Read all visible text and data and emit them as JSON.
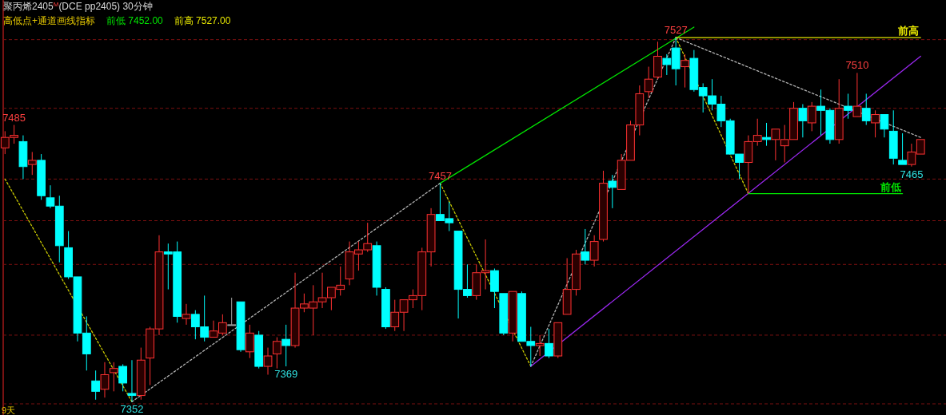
{
  "chart_data": {
    "type": "candlestick",
    "title": "聚丙烯2405$^{M}$(DCE pp2405)  30分钟",
    "tick_labels": false,
    "categories": [
      null,
      null,
      null,
      null,
      null,
      null,
      null,
      null,
      null,
      null,
      null,
      null,
      null,
      null,
      null,
      null,
      null,
      null,
      null,
      null,
      null,
      null,
      null,
      null,
      null,
      null,
      null,
      null,
      null,
      null,
      null,
      null,
      null,
      null,
      null,
      null,
      null,
      null,
      null,
      null,
      null,
      null,
      null,
      null,
      null,
      null,
      null,
      null,
      null,
      null,
      null,
      null,
      null,
      null,
      null,
      null,
      null,
      null,
      null,
      null,
      null,
      null,
      null,
      null,
      null,
      null,
      null,
      null,
      null,
      null,
      null,
      null,
      null,
      null,
      null,
      null,
      null,
      null,
      null,
      null,
      null,
      null,
      null,
      null,
      null,
      null,
      null,
      null,
      null,
      null,
      null,
      null,
      null,
      null,
      null,
      null,
      null,
      null,
      null,
      null,
      null,
      null
    ],
    "ohlc": [
      [
        7474,
        7482,
        7471,
        7479
      ],
      [
        7479,
        7485,
        7476,
        7480
      ],
      [
        7477,
        7480,
        7459,
        7465
      ],
      [
        7466,
        7472,
        7461,
        7468
      ],
      [
        7468,
        7471,
        7449,
        7451
      ],
      [
        7450,
        7456,
        7445,
        7446
      ],
      [
        7446,
        7451,
        7419,
        7427
      ],
      [
        7426,
        7434,
        7411,
        7412
      ],
      [
        7412,
        7412,
        7381,
        7385
      ],
      [
        7385,
        7393,
        7367,
        7375
      ],
      [
        7362,
        7367,
        7353,
        7357
      ],
      [
        7358,
        7371,
        7354,
        7365
      ],
      [
        7366,
        7371,
        7357,
        7368
      ],
      [
        7369,
        7370,
        7357,
        7361
      ],
      [
        7356,
        7372,
        7352,
        7355
      ],
      [
        7355,
        7378,
        7353,
        7372
      ],
      [
        7373,
        7388,
        7360,
        7387
      ],
      [
        7387,
        7432,
        7384,
        7424
      ],
      [
        7424,
        7428,
        7406,
        7423
      ],
      [
        7424,
        7429,
        7390,
        7393
      ],
      [
        7392,
        7399,
        7389,
        7394
      ],
      [
        7394,
        7396,
        7382,
        7388
      ],
      [
        7388,
        7403,
        7381,
        7383
      ],
      [
        7383,
        7391,
        7383,
        7386
      ],
      [
        7385,
        7394,
        7384,
        7390
      ],
      [
        7389,
        7402,
        7389,
        7389
      ],
      [
        7400,
        7400,
        7376,
        7377
      ],
      [
        7376,
        7389,
        7373,
        7385
      ],
      [
        7384,
        7386,
        7368,
        7369
      ],
      [
        7369,
        7378,
        7365,
        7374
      ],
      [
        7375,
        7383,
        7368,
        7381
      ],
      [
        7382,
        7389,
        7369,
        7379
      ],
      [
        7379,
        7414,
        7378,
        7397
      ],
      [
        7397,
        7404,
        7395,
        7399
      ],
      [
        7397,
        7408,
        7384,
        7400
      ],
      [
        7400,
        7414,
        7397,
        7402
      ],
      [
        7402,
        7407,
        7396,
        7407
      ],
      [
        7406,
        7417,
        7403,
        7408
      ],
      [
        7411,
        7429,
        7408,
        7424
      ],
      [
        7423,
        7429,
        7415,
        7425
      ],
      [
        7425,
        7438,
        7424,
        7428
      ],
      [
        7427,
        7429,
        7403,
        7407
      ],
      [
        7406,
        7407,
        7387,
        7388
      ],
      [
        7388,
        7401,
        7386,
        7395
      ],
      [
        7395,
        7401,
        7386,
        7401
      ],
      [
        7401,
        7406,
        7397,
        7403
      ],
      [
        7403,
        7426,
        7396,
        7424
      ],
      [
        7424,
        7445,
        7417,
        7442
      ],
      [
        7442,
        7457,
        7439,
        7439
      ],
      [
        7440,
        7448,
        7434,
        7438
      ],
      [
        7434,
        7434,
        7392,
        7406
      ],
      [
        7406,
        7418,
        7402,
        7403
      ],
      [
        7403,
        7418,
        7401,
        7414
      ],
      [
        7414,
        7430,
        7406,
        7415
      ],
      [
        7415,
        7416,
        7397,
        7405
      ],
      [
        7404,
        7404,
        7384,
        7385
      ],
      [
        7385,
        7405,
        7381,
        7405
      ],
      [
        7404,
        7405,
        7381,
        7381
      ],
      [
        7381,
        7388,
        7369,
        7379
      ],
      [
        7379,
        7384,
        7374,
        7380
      ],
      [
        7380,
        7387,
        7373,
        7374
      ],
      [
        7374,
        7390,
        7373,
        7390
      ],
      [
        7394,
        7421,
        7394,
        7406
      ],
      [
        7406,
        7425,
        7403,
        7423
      ],
      [
        7424,
        7435,
        7418,
        7420
      ],
      [
        7420,
        7432,
        7417,
        7429
      ],
      [
        7430,
        7463,
        7429,
        7457
      ],
      [
        7458,
        7461,
        7445,
        7455
      ],
      [
        7454,
        7471,
        7454,
        7468
      ],
      [
        7468,
        7487,
        7468,
        7485
      ],
      [
        7485,
        7504,
        7480,
        7500
      ],
      [
        7501,
        7513,
        7498,
        7507
      ],
      [
        7508,
        7525,
        7507,
        7518
      ],
      [
        7517,
        7519,
        7509,
        7514
      ],
      [
        7522,
        7527,
        7504,
        7512
      ],
      [
        7513,
        7519,
        7503,
        7516
      ],
      [
        7517,
        7521,
        7501,
        7502
      ],
      [
        7503,
        7505,
        7491,
        7499
      ],
      [
        7499,
        7507,
        7492,
        7495
      ],
      [
        7495,
        7499,
        7484,
        7487
      ],
      [
        7487,
        7488,
        7471,
        7471
      ],
      [
        7471,
        7471,
        7459,
        7467
      ],
      [
        7467,
        7480,
        7452,
        7477
      ],
      [
        7477,
        7488,
        7475,
        7480
      ],
      [
        7479,
        7486,
        7475,
        7478
      ],
      [
        7478,
        7483,
        7468,
        7483
      ],
      [
        7475,
        7485,
        7467,
        7478
      ],
      [
        7478,
        7496,
        7478,
        7493
      ],
      [
        7493,
        7495,
        7479,
        7487
      ],
      [
        7486,
        7496,
        7482,
        7494
      ],
      [
        7494,
        7502,
        7480,
        7492
      ],
      [
        7492,
        7493,
        7476,
        7478
      ],
      [
        7478,
        7507,
        7476,
        7493
      ],
      [
        7494,
        7500,
        7488,
        7492
      ],
      [
        7489,
        7510,
        7489,
        7494
      ],
      [
        7493,
        7500,
        7485,
        7487
      ],
      [
        7486,
        7492,
        7479,
        7490
      ],
      [
        7490,
        7490,
        7479,
        7483
      ],
      [
        7482,
        7492,
        7466,
        7469
      ],
      [
        7468,
        7481,
        7466,
        7466
      ],
      [
        7466,
        7476,
        7465,
        7472
      ],
      [
        7471,
        7478,
        7471,
        7478
      ]
    ],
    "colors": [
      "#ff3232",
      "#ff3232",
      "#00ffff",
      "#ff3232",
      "#00ffff",
      "#00ffff",
      "#00ffff",
      "#00ffff",
      "#00ffff",
      "#00ffff",
      "#00ffff",
      "#ff3232",
      "#ff3232",
      "#00ffff",
      "#00ffff",
      "#ff3232",
      "#ff3232",
      "#ff3232",
      "#00ffff",
      "#00ffff",
      "#ff3232",
      "#00ffff",
      "#00ffff",
      "#ff3232",
      "#ff3232",
      "#a0a0a0",
      "#00ffff",
      "#ff3232",
      "#00ffff",
      "#ff3232",
      "#ff3232",
      "#00ffff",
      "#ff3232",
      "#ff3232",
      "#ff3232",
      "#ff3232",
      "#ff3232",
      "#ff3232",
      "#ff3232",
      "#ff3232",
      "#ff3232",
      "#00ffff",
      "#00ffff",
      "#ff3232",
      "#ff3232",
      "#ff3232",
      "#ff3232",
      "#ff3232",
      "#00ffff",
      "#00ffff",
      "#00ffff",
      "#00ffff",
      "#ff3232",
      "#ff3232",
      "#00ffff",
      "#00ffff",
      "#ff3232",
      "#00ffff",
      "#00ffff",
      "#ff3232",
      "#00ffff",
      "#ff3232",
      "#ff3232",
      "#ff3232",
      "#00ffff",
      "#ff3232",
      "#ff3232",
      "#00ffff",
      "#ff3232",
      "#ff3232",
      "#ff3232",
      "#ff3232",
      "#ff3232",
      "#00ffff",
      "#00ffff",
      "#ff3232",
      "#00ffff",
      "#00ffff",
      "#00ffff",
      "#00ffff",
      "#00ffff",
      "#00ffff",
      "#ff3232",
      "#ff3232",
      "#00ffff",
      "#ff3232",
      "#ff3232",
      "#ff3232",
      "#00ffff",
      "#ff3232",
      "#00ffff",
      "#00ffff",
      "#ff3232",
      "#00ffff",
      "#ff3232",
      "#00ffff",
      "#ff3232",
      "#00ffff",
      "#00ffff",
      "#00ffff",
      "#ff3232",
      "#ff3232"
    ],
    "series": [
      {
        "type": "line",
        "color": "#c8c800",
        "line_style": "dotted",
        "values": [
          7459,
          null,
          null,
          null,
          null,
          null,
          null,
          null,
          null,
          null,
          null,
          null,
          null,
          null,
          7352,
          null,
          null,
          null,
          null,
          null,
          null,
          null,
          null,
          null,
          null,
          null,
          null,
          null,
          null,
          null,
          null,
          null,
          null,
          null,
          null,
          null,
          null,
          null,
          null,
          null,
          null,
          null,
          null,
          null,
          null,
          null,
          null,
          null,
          null,
          null,
          null,
          null,
          null,
          null,
          null,
          null,
          null,
          null,
          null,
          null,
          null,
          null,
          null,
          null,
          null,
          null,
          null,
          null,
          null,
          null,
          null,
          null,
          null,
          null,
          null,
          null,
          null,
          null,
          null,
          null,
          null,
          null,
          null,
          null,
          null,
          null,
          null,
          null,
          null,
          null,
          null,
          null,
          null,
          null,
          null,
          null,
          null,
          null,
          null,
          null,
          null,
          null
        ]
      },
      {
        "type": "line",
        "color": "#c8c800",
        "line_style": "dotted",
        "values": [
          null,
          null,
          null,
          null,
          null,
          null,
          null,
          null,
          null,
          null,
          null,
          null,
          null,
          null,
          null,
          null,
          null,
          null,
          null,
          null,
          null,
          null,
          null,
          null,
          null,
          null,
          null,
          null,
          null,
          null,
          null,
          null,
          null,
          null,
          null,
          null,
          null,
          null,
          null,
          null,
          null,
          null,
          null,
          null,
          null,
          null,
          null,
          null,
          7457,
          null,
          null,
          null,
          null,
          null,
          null,
          null,
          null,
          null,
          7369,
          null,
          null,
          null,
          null,
          null,
          null,
          null,
          null,
          null,
          null,
          null,
          null,
          null,
          null,
          null,
          null,
          null,
          null,
          null,
          null,
          null,
          null,
          null,
          null,
          null,
          null,
          null,
          null,
          null,
          null,
          null,
          null,
          null,
          null,
          null,
          null,
          null,
          null,
          null,
          null,
          null,
          null,
          null
        ]
      },
      {
        "type": "line",
        "color": "#c8c800",
        "line_style": "dotted",
        "values": [
          null,
          null,
          null,
          null,
          null,
          null,
          null,
          null,
          null,
          null,
          null,
          null,
          null,
          null,
          null,
          null,
          null,
          null,
          null,
          null,
          null,
          null,
          null,
          null,
          null,
          null,
          null,
          null,
          null,
          null,
          null,
          null,
          null,
          null,
          null,
          null,
          null,
          null,
          null,
          null,
          null,
          null,
          null,
          null,
          null,
          null,
          null,
          null,
          null,
          null,
          null,
          null,
          null,
          null,
          null,
          null,
          null,
          null,
          null,
          null,
          null,
          null,
          null,
          null,
          null,
          null,
          null,
          null,
          null,
          null,
          null,
          null,
          null,
          null,
          7527,
          null,
          null,
          null,
          null,
          null,
          null,
          null,
          7452,
          null,
          null,
          null,
          null,
          null,
          null,
          null,
          null,
          null,
          null,
          null,
          null,
          null,
          null,
          null,
          null,
          null,
          null,
          null
        ]
      },
      {
        "type": "line",
        "color": "#b4b4b4",
        "line_style": "dotted",
        "values": [
          null,
          null,
          null,
          null,
          null,
          null,
          null,
          null,
          null,
          null,
          null,
          null,
          null,
          null,
          7352,
          null,
          null,
          null,
          null,
          null,
          null,
          null,
          null,
          null,
          null,
          null,
          null,
          null,
          null,
          null,
          null,
          null,
          null,
          null,
          null,
          null,
          null,
          null,
          null,
          null,
          null,
          null,
          null,
          null,
          null,
          null,
          null,
          null,
          7457,
          null,
          null,
          null,
          null,
          null,
          null,
          null,
          null,
          null,
          null,
          null,
          null,
          null,
          null,
          null,
          null,
          null,
          null,
          null,
          null,
          null,
          null,
          null,
          null,
          null,
          null,
          null,
          null,
          null,
          null,
          null,
          null,
          null,
          null,
          null,
          null,
          null,
          null,
          null,
          null,
          null,
          null,
          null,
          null,
          null,
          null,
          null,
          null,
          null,
          null,
          null,
          null,
          null
        ]
      },
      {
        "type": "line",
        "color": "#b4b4b4",
        "line_style": "dotted",
        "values": [
          null,
          null,
          null,
          null,
          null,
          null,
          null,
          null,
          null,
          null,
          null,
          null,
          null,
          null,
          null,
          null,
          null,
          null,
          null,
          null,
          null,
          null,
          null,
          null,
          null,
          null,
          null,
          null,
          null,
          null,
          null,
          null,
          null,
          null,
          null,
          null,
          null,
          null,
          null,
          null,
          null,
          null,
          null,
          null,
          null,
          null,
          null,
          null,
          null,
          null,
          null,
          null,
          null,
          null,
          null,
          null,
          null,
          null,
          7369,
          null,
          null,
          null,
          null,
          null,
          null,
          null,
          null,
          null,
          null,
          null,
          null,
          null,
          null,
          null,
          7527,
          null,
          null,
          null,
          null,
          null,
          null,
          null,
          null,
          null,
          null,
          null,
          null,
          null,
          null,
          null,
          null,
          null,
          null,
          null,
          null,
          null,
          null,
          null,
          null,
          null,
          null,
          null
        ]
      },
      {
        "type": "line",
        "color": "#b4b4b4",
        "line_style": "dotted",
        "values": [
          null,
          null,
          null,
          null,
          null,
          null,
          null,
          null,
          null,
          null,
          null,
          null,
          null,
          null,
          null,
          null,
          null,
          null,
          null,
          null,
          null,
          null,
          null,
          null,
          null,
          null,
          null,
          null,
          null,
          null,
          null,
          null,
          null,
          null,
          null,
          null,
          null,
          null,
          null,
          null,
          null,
          null,
          null,
          null,
          null,
          null,
          null,
          null,
          null,
          null,
          null,
          null,
          null,
          null,
          null,
          null,
          null,
          null,
          null,
          null,
          null,
          null,
          null,
          null,
          null,
          null,
          null,
          null,
          null,
          null,
          null,
          null,
          null,
          null,
          7527,
          null,
          null,
          null,
          null,
          null,
          null,
          null,
          null,
          null,
          null,
          null,
          null,
          null,
          null,
          null,
          null,
          null,
          null,
          null,
          null,
          null,
          null,
          null,
          null,
          null,
          null,
          7479
        ]
      },
      {
        "type": "line",
        "color": "#00e600",
        "line_style": "solid",
        "values": [
          null,
          null,
          null,
          null,
          null,
          null,
          null,
          null,
          null,
          null,
          null,
          null,
          null,
          null,
          null,
          null,
          null,
          null,
          null,
          null,
          null,
          null,
          null,
          null,
          null,
          null,
          null,
          null,
          null,
          null,
          null,
          null,
          null,
          null,
          null,
          null,
          null,
          null,
          null,
          null,
          null,
          null,
          null,
          null,
          null,
          null,
          null,
          null,
          7457,
          null,
          null,
          null,
          null,
          null,
          null,
          null,
          null,
          null,
          null,
          null,
          null,
          null,
          null,
          null,
          null,
          null,
          null,
          null,
          null,
          null,
          null,
          null,
          null,
          null,
          null,
          null,
          7532,
          null,
          null,
          null,
          null,
          null,
          null,
          null,
          null,
          null,
          null,
          null,
          null,
          null,
          null,
          null,
          null,
          null,
          null,
          null,
          null,
          null,
          null,
          null,
          null,
          null
        ]
      },
      {
        "type": "line",
        "color": "#9a28f0",
        "line_style": "solid",
        "values": [
          null,
          null,
          null,
          null,
          null,
          null,
          null,
          null,
          null,
          null,
          null,
          null,
          null,
          null,
          null,
          null,
          null,
          null,
          null,
          null,
          null,
          null,
          null,
          null,
          null,
          null,
          null,
          null,
          null,
          null,
          null,
          null,
          null,
          null,
          null,
          null,
          null,
          null,
          null,
          null,
          null,
          null,
          null,
          null,
          null,
          null,
          null,
          null,
          null,
          null,
          null,
          null,
          null,
          null,
          null,
          null,
          null,
          null,
          7369,
          null,
          null,
          null,
          null,
          null,
          null,
          null,
          null,
          null,
          null,
          null,
          null,
          null,
          null,
          null,
          null,
          null,
          null,
          null,
          null,
          null,
          null,
          null,
          null,
          null,
          null,
          null,
          null,
          null,
          null,
          null,
          null,
          null,
          null,
          null,
          null,
          null,
          null,
          null,
          null,
          null,
          null,
          7518
        ]
      },
      {
        "type": "line",
        "name": "前高",
        "color": "#e6e600",
        "line_style": "solid",
        "values": [
          null,
          null,
          null,
          null,
          null,
          null,
          null,
          null,
          null,
          null,
          null,
          null,
          null,
          null,
          null,
          null,
          null,
          null,
          null,
          null,
          null,
          null,
          null,
          null,
          null,
          null,
          null,
          null,
          null,
          null,
          null,
          null,
          null,
          null,
          null,
          null,
          null,
          null,
          null,
          null,
          null,
          null,
          null,
          null,
          null,
          null,
          null,
          null,
          null,
          null,
          null,
          null,
          null,
          null,
          null,
          null,
          null,
          null,
          null,
          null,
          null,
          null,
          null,
          null,
          null,
          null,
          null,
          null,
          null,
          null,
          null,
          null,
          null,
          null,
          7527,
          null,
          null,
          null,
          null,
          null,
          null,
          null,
          null,
          null,
          null,
          null,
          null,
          null,
          null,
          null,
          null,
          null,
          null,
          null,
          null,
          null,
          null,
          null,
          null,
          null,
          null,
          7527
        ]
      },
      {
        "type": "line",
        "name": "前低",
        "color": "#00e600",
        "line_style": "solid",
        "values": [
          null,
          null,
          null,
          null,
          null,
          null,
          null,
          null,
          null,
          null,
          null,
          null,
          null,
          null,
          null,
          null,
          null,
          null,
          null,
          null,
          null,
          null,
          null,
          null,
          null,
          null,
          null,
          null,
          null,
          null,
          null,
          null,
          null,
          null,
          null,
          null,
          null,
          null,
          null,
          null,
          null,
          null,
          null,
          null,
          null,
          null,
          null,
          null,
          null,
          null,
          null,
          null,
          null,
          null,
          null,
          null,
          null,
          null,
          null,
          null,
          null,
          null,
          null,
          null,
          null,
          null,
          null,
          null,
          null,
          null,
          null,
          null,
          null,
          null,
          null,
          null,
          null,
          null,
          null,
          null,
          null,
          null,
          7452,
          null,
          null,
          null,
          null,
          null,
          null,
          null,
          null,
          null,
          null,
          null,
          null,
          null,
          null,
          null,
          null,
          7452,
          null,
          null
        ]
      }
    ],
    "ref_lines": [
      {
        "axis": "y",
        "value": 7526,
        "color": "#7a1010",
        "line_style": "dashed"
      },
      {
        "axis": "y",
        "value": 7493,
        "color": "#7a1010",
        "line_style": "dashed"
      },
      {
        "axis": "y",
        "value": 7459,
        "color": "#7a1010",
        "line_style": "dashed"
      },
      {
        "axis": "y",
        "value": 7439,
        "color": "#7a1010",
        "line_style": "dashed"
      },
      {
        "axis": "y",
        "value": 7418,
        "color": "#7a1010",
        "line_style": "dashed"
      },
      {
        "axis": "y",
        "value": 7384,
        "color": "#7a1010",
        "line_style": "dashed"
      },
      {
        "axis": "y",
        "value": 7351,
        "color": "#7a1010",
        "line_style": "dashed"
      }
    ],
    "annotations": [
      "高低点+通道画线指标",
      "前低 7452.00",
      "前高 7527.00",
      "9天",
      {
        "text": "7485",
        "y": 7485
      },
      {
        "text": "7352",
        "y": 7352
      },
      {
        "text": "7457",
        "y": 7457
      },
      {
        "text": "7369",
        "y": 7369
      },
      {
        "text": "7527",
        "y": 7527
      },
      {
        "text": "7510",
        "y": 7510
      },
      {
        "text": "7465",
        "y": 7465
      }
    ]
  }
}
